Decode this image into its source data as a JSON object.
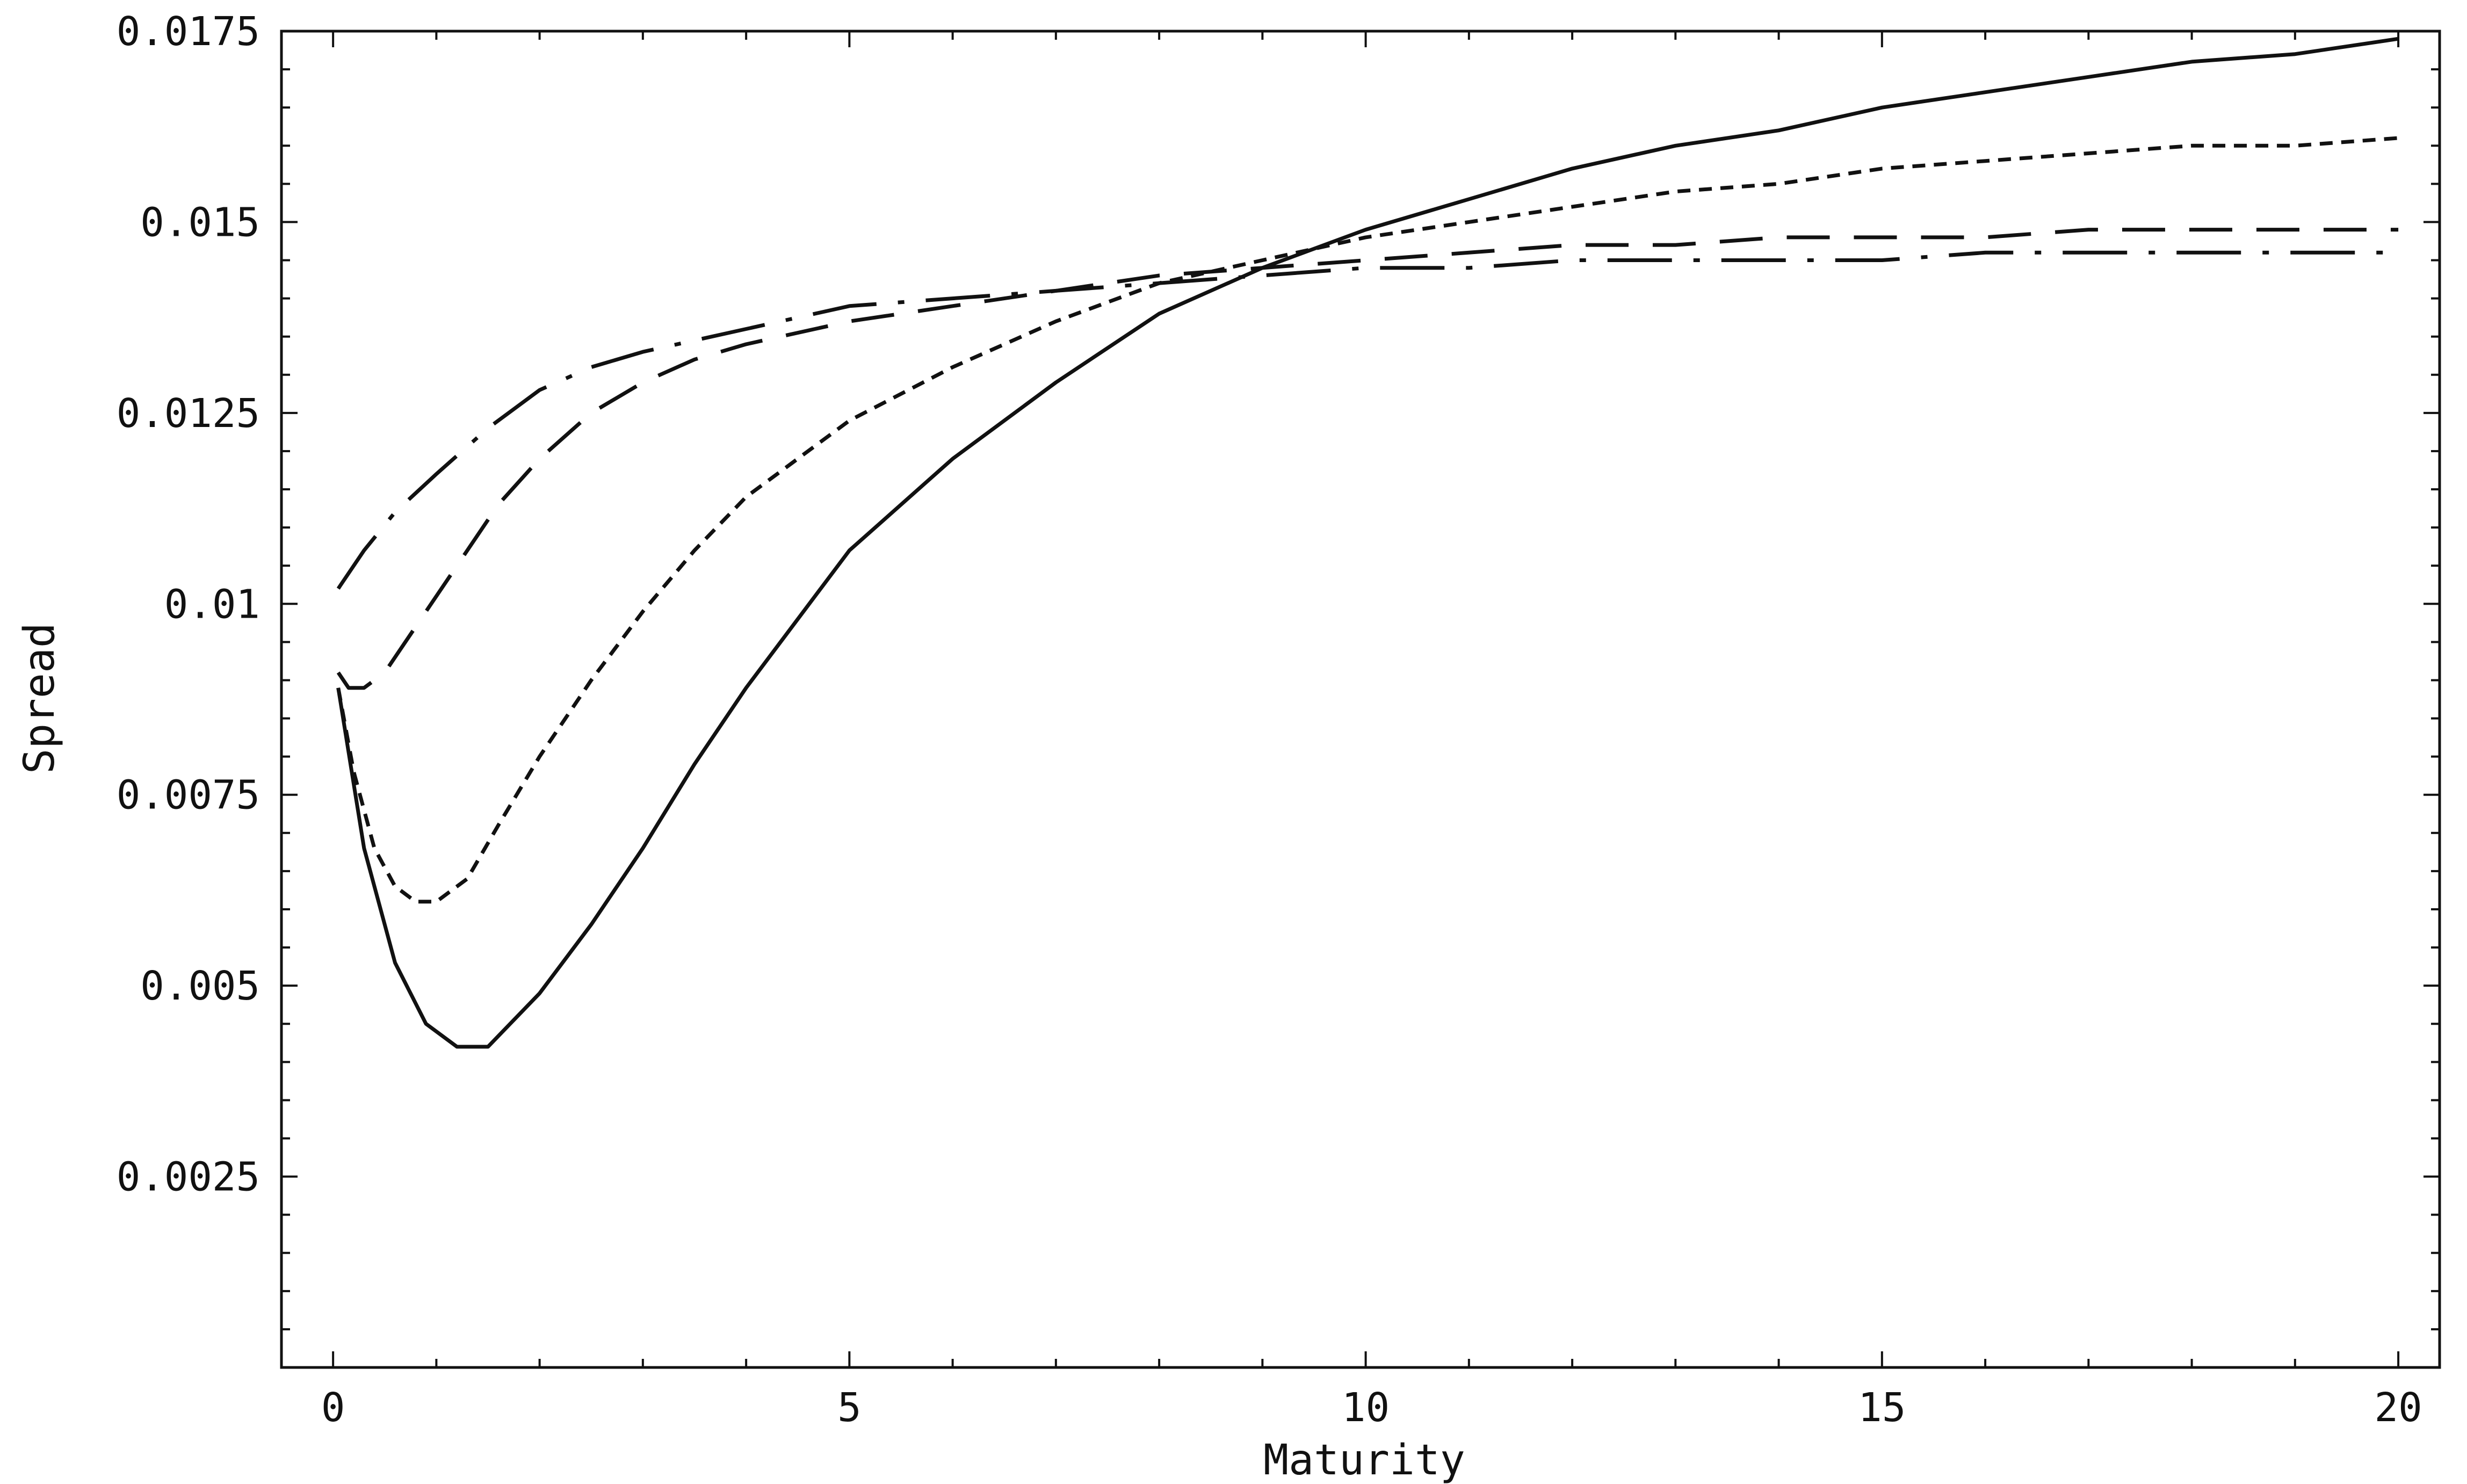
{
  "chart_data": {
    "type": "line",
    "title": "",
    "xlabel": "Maturity",
    "ylabel": "Spread",
    "xlim": [
      -0.5,
      20.4
    ],
    "ylim": [
      0,
      0.0175
    ],
    "xticks": [
      0,
      5,
      10,
      15,
      20
    ],
    "xtick_labels": [
      "0",
      "5",
      "10",
      "15",
      "20"
    ],
    "yticks": [
      0.0025,
      0.005,
      0.0075,
      0.01,
      0.0125,
      0.015,
      0.0175
    ],
    "ytick_labels": [
      "0.0025",
      "0.005",
      "0.0075",
      "0.01",
      "0.0125",
      "0.015",
      "0.0175"
    ],
    "grid": false,
    "legend": "none",
    "series": [
      {
        "style": "solid",
        "x": [
          0.05,
          0.3,
          0.6,
          0.9,
          1.2,
          1.5,
          2,
          2.5,
          3,
          3.5,
          4,
          5,
          6,
          7,
          8,
          9,
          10,
          11,
          12,
          13,
          14,
          15,
          16,
          17,
          18,
          19,
          20
        ],
        "y": [
          0.0089,
          0.0068,
          0.0053,
          0.0045,
          0.0042,
          0.0042,
          0.0049,
          0.0058,
          0.0068,
          0.0079,
          0.0089,
          0.0107,
          0.0119,
          0.0129,
          0.0138,
          0.0144,
          0.0149,
          0.0153,
          0.0157,
          0.016,
          0.0162,
          0.0165,
          0.0167,
          0.0169,
          0.0171,
          0.0172,
          0.0174
        ]
      },
      {
        "style": "dotted",
        "x": [
          0.05,
          0.2,
          0.4,
          0.6,
          0.8,
          1,
          1.3,
          1.6,
          2,
          2.5,
          3,
          3.5,
          4,
          5,
          6,
          7,
          8,
          9,
          10,
          11,
          12,
          13,
          14,
          15,
          16,
          17,
          18,
          19,
          20
        ],
        "y": [
          0.0089,
          0.0078,
          0.0068,
          0.0063,
          0.0061,
          0.0061,
          0.0064,
          0.0071,
          0.008,
          0.009,
          0.0099,
          0.0107,
          0.0114,
          0.0124,
          0.0131,
          0.0137,
          0.0142,
          0.0145,
          0.0148,
          0.015,
          0.0152,
          0.0154,
          0.0155,
          0.0157,
          0.0158,
          0.0159,
          0.016,
          0.016,
          0.0161
        ]
      },
      {
        "style": "dashed",
        "x": [
          0.05,
          0.15,
          0.3,
          0.5,
          0.8,
          1.2,
          1.6,
          2,
          2.5,
          3,
          3.5,
          4,
          5,
          6,
          7,
          8,
          9,
          10,
          11,
          12,
          13,
          14,
          15,
          16,
          17,
          18,
          19,
          20
        ],
        "y": [
          0.0091,
          0.0089,
          0.0089,
          0.0091,
          0.0097,
          0.0105,
          0.0113,
          0.0119,
          0.0125,
          0.0129,
          0.0132,
          0.0134,
          0.0137,
          0.0139,
          0.0141,
          0.0143,
          0.0144,
          0.0145,
          0.0146,
          0.0147,
          0.0147,
          0.0148,
          0.0148,
          0.0148,
          0.0149,
          0.0149,
          0.0149,
          0.0149
        ]
      },
      {
        "style": "dash-dot",
        "x": [
          0.05,
          0.3,
          0.6,
          1,
          1.5,
          2,
          2.5,
          3,
          4,
          5,
          6,
          7,
          8,
          9,
          10,
          11,
          12,
          13,
          14,
          15,
          16,
          17,
          18,
          19,
          20
        ],
        "y": [
          0.0102,
          0.0107,
          0.0112,
          0.0117,
          0.0123,
          0.0128,
          0.0131,
          0.0133,
          0.0136,
          0.0139,
          0.014,
          0.0141,
          0.0142,
          0.0143,
          0.0144,
          0.0144,
          0.0145,
          0.0145,
          0.0145,
          0.0145,
          0.0146,
          0.0146,
          0.0146,
          0.0146,
          0.0146
        ]
      }
    ]
  }
}
